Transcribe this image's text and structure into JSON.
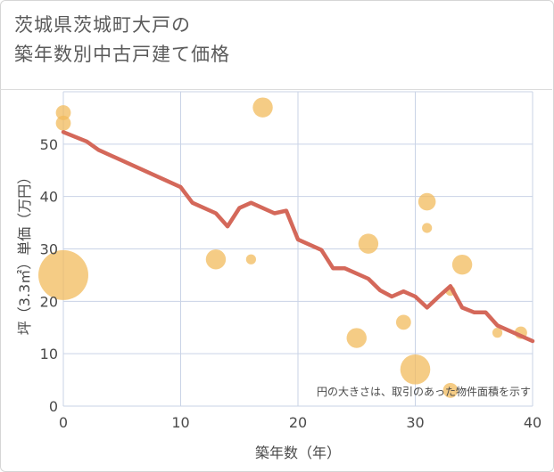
{
  "title": {
    "line1": "茨城県茨城町大戸の",
    "line2": "築年数別中古戸建て価格"
  },
  "chart_data": {
    "type": "scatter",
    "title": "茨城県茨城町大戸の築年数別中古戸建て価格",
    "xlabel": "築年数（年）",
    "ylabel": "坪（3.3㎡）単価（万円）",
    "xlim": [
      0,
      40
    ],
    "ylim": [
      0,
      60
    ],
    "xticks": [
      0,
      10,
      20,
      30,
      40
    ],
    "yticks": [
      0,
      10,
      20,
      30,
      40,
      50
    ],
    "grid": true,
    "annotation": "円の大きさは、取引のあった物件面積を示す",
    "colors": {
      "bubble": "#F2BB5C",
      "line": "#D4685A",
      "grid": "#C9D3E6",
      "text": "#4a4a4a"
    },
    "bubbles": [
      {
        "x": 0,
        "y": 56,
        "size": 3
      },
      {
        "x": 0,
        "y": 54,
        "size": 3
      },
      {
        "x": 0,
        "y": 25,
        "size": 10
      },
      {
        "x": 13,
        "y": 28,
        "size": 4
      },
      {
        "x": 16,
        "y": 28,
        "size": 2
      },
      {
        "x": 17,
        "y": 57,
        "size": 4
      },
      {
        "x": 25,
        "y": 13,
        "size": 4
      },
      {
        "x": 26,
        "y": 31,
        "size": 4
      },
      {
        "x": 29,
        "y": 16,
        "size": 3
      },
      {
        "x": 30,
        "y": 7,
        "size": 6
      },
      {
        "x": 31,
        "y": 39,
        "size": 3.5
      },
      {
        "x": 31,
        "y": 34,
        "size": 2
      },
      {
        "x": 33,
        "y": 3,
        "size": 3
      },
      {
        "x": 33,
        "y": 22,
        "size": 2
      },
      {
        "x": 34,
        "y": 27,
        "size": 4
      },
      {
        "x": 37,
        "y": 14,
        "size": 2
      },
      {
        "x": 39,
        "y": 14,
        "size": 2.5
      }
    ],
    "series": [
      {
        "name": "trend",
        "x": [
          0,
          2,
          3,
          10,
          11,
          13,
          14,
          15,
          16,
          18,
          19,
          20,
          22,
          23,
          24,
          26,
          27,
          28,
          29,
          30,
          31,
          32,
          33,
          34,
          35,
          36,
          37,
          40
        ],
        "y": [
          52.3,
          50.5,
          48.9,
          41.8,
          38.8,
          36.8,
          34.3,
          37.8,
          38.8,
          36.8,
          37.3,
          31.8,
          29.8,
          26.3,
          26.3,
          24.3,
          22.1,
          20.9,
          21.9,
          20.9,
          18.8,
          20.9,
          22.9,
          18.8,
          17.9,
          17.9,
          15.4,
          12.4
        ]
      }
    ]
  }
}
